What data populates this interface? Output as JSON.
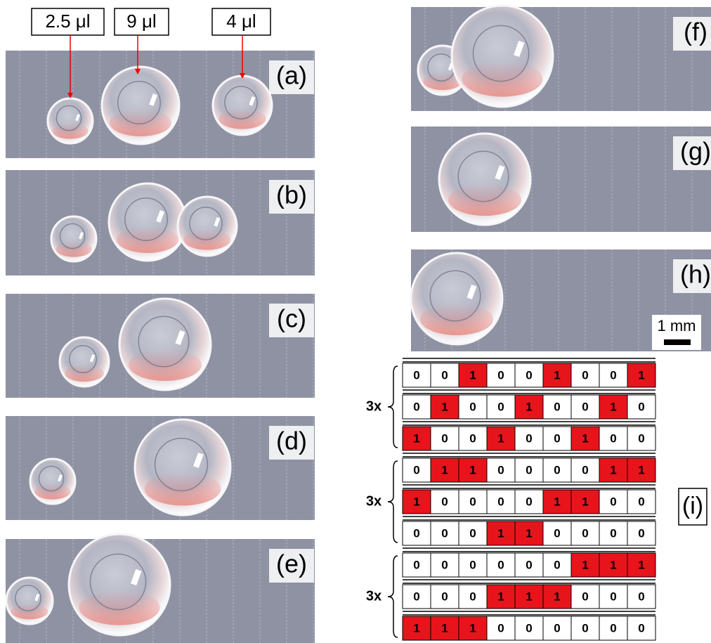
{
  "volumes": [
    "2.5 μl",
    "9 μl",
    "4 μl"
  ],
  "panels": [
    "(a)",
    "(b)",
    "(c)",
    "(d)",
    "(e)",
    "(f)",
    "(g)",
    "(h)"
  ],
  "scale_bar": "1 mm",
  "table": {
    "label": "(i)",
    "groups": [
      {
        "repeat": "3x",
        "rows": [
          [
            0,
            0,
            1,
            0,
            0,
            1,
            0,
            0,
            1
          ],
          [
            0,
            1,
            0,
            0,
            1,
            0,
            0,
            1,
            0
          ],
          [
            1,
            0,
            0,
            1,
            0,
            0,
            1,
            0,
            0
          ]
        ]
      },
      {
        "repeat": "3x",
        "rows": [
          [
            0,
            1,
            1,
            0,
            0,
            0,
            0,
            1,
            1
          ],
          [
            1,
            0,
            0,
            0,
            0,
            1,
            1,
            0,
            0
          ],
          [
            0,
            0,
            0,
            1,
            1,
            0,
            0,
            0,
            0
          ]
        ]
      },
      {
        "repeat": "3x",
        "rows": [
          [
            0,
            0,
            0,
            0,
            0,
            0,
            1,
            1,
            1
          ],
          [
            0,
            0,
            0,
            1,
            1,
            1,
            0,
            0,
            0
          ],
          [
            1,
            1,
            1,
            0,
            0,
            0,
            0,
            0,
            0
          ]
        ]
      }
    ]
  }
}
